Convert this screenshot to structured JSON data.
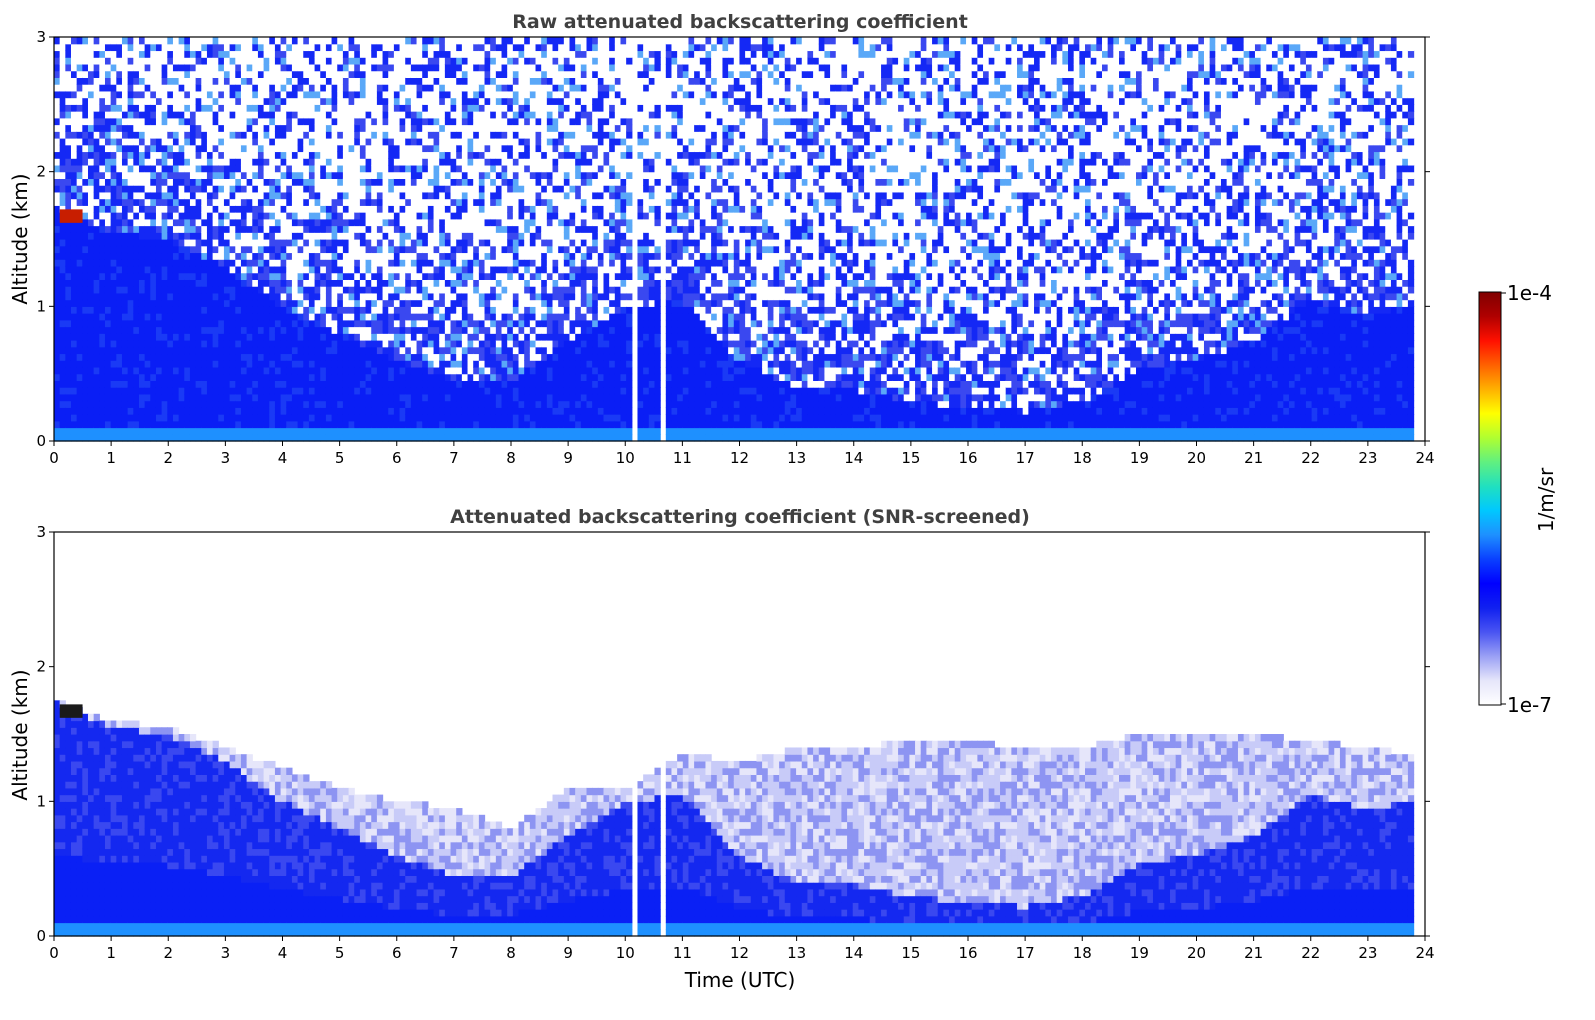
{
  "chart_data": [
    {
      "type": "heatmap",
      "title": "Raw attenuated backscattering coefficient",
      "xlabel": "",
      "ylabel": "Altitude (km)",
      "xlim": [
        0,
        24
      ],
      "ylim": [
        0,
        3
      ],
      "x_ticks": [
        "0",
        "1",
        "2",
        "3",
        "4",
        "5",
        "6",
        "7",
        "8",
        "9",
        "10",
        "11",
        "12",
        "13",
        "14",
        "15",
        "16",
        "17",
        "18",
        "19",
        "20",
        "21",
        "22",
        "23",
        "24"
      ],
      "y_ticks": [
        "0",
        "1",
        "2",
        "3"
      ],
      "x_unit": "hour UTC",
      "y_unit": "km",
      "mixed_layer_top_km": [
        [
          0.0,
          1.75
        ],
        [
          1,
          1.55
        ],
        [
          2,
          1.5
        ],
        [
          3,
          1.3
        ],
        [
          4,
          1.0
        ],
        [
          5,
          0.8
        ],
        [
          6,
          0.6
        ],
        [
          7,
          0.45
        ],
        [
          8,
          0.45
        ],
        [
          9,
          0.75
        ],
        [
          10,
          1.0
        ],
        [
          11,
          1.05
        ],
        [
          12,
          0.6
        ],
        [
          13,
          0.4
        ],
        [
          14,
          0.38
        ],
        [
          15,
          0.3
        ],
        [
          16,
          0.25
        ],
        [
          17,
          0.22
        ],
        [
          18,
          0.3
        ],
        [
          19,
          0.55
        ],
        [
          20,
          0.6
        ],
        [
          21,
          0.75
        ],
        [
          22,
          1.05
        ],
        [
          23,
          0.95
        ],
        [
          23.8,
          1.0
        ]
      ],
      "data_gaps_hours": [
        [
          10.1,
          10.2
        ],
        [
          10.58,
          10.72
        ]
      ],
      "cloud_layer": {
        "x": [
          0.1,
          0.5
        ],
        "y": [
          1.62,
          1.72
        ],
        "level": "1e-4"
      }
    },
    {
      "type": "heatmap",
      "title": "Attenuated backscattering coefficient (SNR-screened)",
      "xlabel": "Time (UTC)",
      "ylabel": "Altitude (km)",
      "xlim": [
        0,
        24
      ],
      "ylim": [
        0,
        3
      ],
      "x_ticks": [
        "0",
        "1",
        "2",
        "3",
        "4",
        "5",
        "6",
        "7",
        "8",
        "9",
        "10",
        "11",
        "12",
        "13",
        "14",
        "15",
        "16",
        "17",
        "18",
        "19",
        "20",
        "21",
        "22",
        "23",
        "24"
      ],
      "y_ticks": [
        "0",
        "1",
        "2",
        "3"
      ],
      "x_unit": "hour UTC",
      "y_unit": "km",
      "screened_top_km": [
        [
          0.0,
          1.75
        ],
        [
          1,
          1.6
        ],
        [
          2,
          1.55
        ],
        [
          3,
          1.4
        ],
        [
          4,
          1.25
        ],
        [
          5,
          1.1
        ],
        [
          6,
          1.0
        ],
        [
          7,
          0.95
        ],
        [
          8,
          0.8
        ],
        [
          9,
          1.1
        ],
        [
          10,
          1.1
        ],
        [
          11,
          1.35
        ],
        [
          12,
          1.3
        ],
        [
          13,
          1.4
        ],
        [
          14,
          1.4
        ],
        [
          15,
          1.45
        ],
        [
          16,
          1.45
        ],
        [
          17,
          1.4
        ],
        [
          18,
          1.4
        ],
        [
          19,
          1.5
        ],
        [
          20,
          1.5
        ],
        [
          21,
          1.5
        ],
        [
          22,
          1.45
        ],
        [
          23,
          1.4
        ],
        [
          23.8,
          1.35
        ]
      ],
      "data_gaps_hours": [
        [
          10.1,
          10.2
        ],
        [
          10.58,
          10.72
        ]
      ],
      "cloud_layer": {
        "x": [
          0.1,
          0.5
        ],
        "y": [
          1.62,
          1.72
        ],
        "level": "1e-4"
      }
    }
  ],
  "colorbar": {
    "label": "1/m/sr",
    "max_label": "1e-4",
    "min_label": "1e-7",
    "scale": "log",
    "range": [
      1e-07,
      0.0001
    ],
    "colors": [
      "#ffffff",
      "#e6e6fa",
      "#9aa0f5",
      "#4a55f2",
      "#1020f0",
      "#0000ff",
      "#0a40ff",
      "#1e90ff",
      "#00c8ff",
      "#20e0c0",
      "#60f080",
      "#b0ff30",
      "#ffff00",
      "#ffb000",
      "#ff6000",
      "#ff1000",
      "#b00000",
      "#800000"
    ]
  }
}
